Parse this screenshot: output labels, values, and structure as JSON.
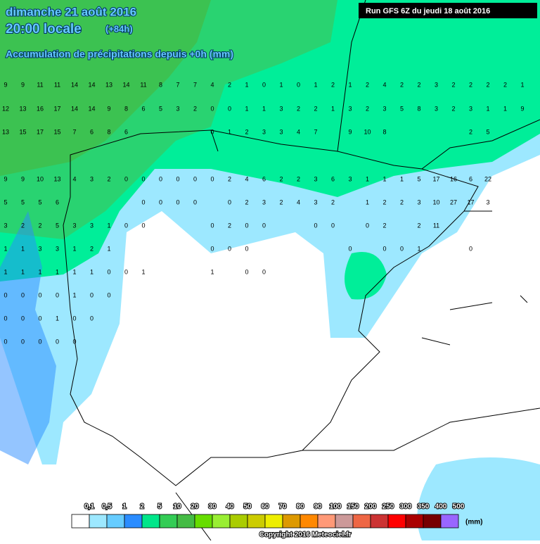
{
  "header": {
    "title": "dimanche 21 août 2016",
    "time": "20:00 locale",
    "horizon": "(+84h)",
    "subtitle": "Accumulation de précipitations depuis +0h (mm)",
    "run": "Run GFS 6Z du jeudi 18 août 2016"
  },
  "map_labels": {
    "rows": [
      [
        9,
        9,
        11,
        11,
        14,
        14,
        13,
        14,
        11,
        8,
        7,
        7,
        4,
        2,
        1,
        0,
        1,
        0,
        1,
        2,
        1,
        2,
        4,
        2,
        2,
        3,
        2,
        2,
        2,
        2,
        1
      ],
      [
        12,
        13,
        16,
        17,
        14,
        14,
        9,
        8,
        6,
        5,
        3,
        2,
        0,
        0,
        1,
        1,
        3,
        2,
        2,
        1,
        3,
        2,
        3,
        5,
        8,
        3,
        2,
        3,
        1,
        1,
        9
      ],
      [
        13,
        15,
        17,
        15,
        7,
        6,
        8,
        6,
        null,
        null,
        null,
        null,
        0,
        1,
        2,
        3,
        3,
        4,
        7,
        null,
        9,
        10,
        8,
        null,
        null,
        null,
        null,
        2,
        5
      ],
      [
        9,
        9,
        10,
        13,
        4,
        3,
        2,
        0,
        0,
        0,
        0,
        0,
        0,
        2,
        4,
        6,
        2,
        2,
        3,
        6,
        3,
        1,
        1,
        1,
        5,
        17,
        16,
        6,
        22
      ],
      [
        5,
        5,
        5,
        6,
        null,
        null,
        null,
        null,
        0,
        0,
        0,
        0,
        null,
        0,
        2,
        3,
        2,
        4,
        3,
        2,
        null,
        1,
        2,
        2,
        3,
        10,
        27,
        17,
        3
      ],
      [
        3,
        2,
        2,
        5,
        3,
        3,
        1,
        0,
        0,
        null,
        null,
        null,
        0,
        2,
        0,
        0,
        null,
        null,
        0,
        0,
        null,
        0,
        2,
        null,
        2,
        11
      ],
      [
        1,
        1,
        3,
        3,
        1,
        2,
        1,
        null,
        null,
        null,
        null,
        null,
        0,
        0,
        0,
        null,
        null,
        null,
        null,
        null,
        0,
        null,
        0,
        0,
        1,
        null,
        null,
        0
      ],
      [
        1,
        1,
        1,
        1,
        1,
        1,
        0,
        0,
        1,
        null,
        null,
        null,
        1,
        null,
        0,
        0
      ],
      [
        0,
        0,
        0,
        0,
        1,
        0,
        0
      ],
      [
        0,
        0,
        0,
        1,
        0,
        0
      ],
      [
        0,
        0,
        0,
        0,
        0
      ]
    ]
  },
  "legend": {
    "labels": [
      "0,1",
      "0,5",
      "1",
      "2",
      "5",
      "10",
      "20",
      "30",
      "40",
      "50",
      "60",
      "70",
      "80",
      "90",
      "100",
      "150",
      "200",
      "250",
      "300",
      "350",
      "400",
      "500"
    ],
    "colors": [
      "#ffffff",
      "#9de8ff",
      "#66ccff",
      "#2a8cff",
      "#00e68a",
      "#33cc55",
      "#44bb44",
      "#66dd00",
      "#99ee33",
      "#aacc00",
      "#cccc00",
      "#eeee00",
      "#dd9900",
      "#ff8800",
      "#ff9977",
      "#cc9999",
      "#ee6644",
      "#cc3333",
      "#ff0000",
      "#aa0000",
      "#770000",
      "#9966ff"
    ],
    "unit": "(mm)"
  },
  "copyright": "Copyright 2016 Meteociel.fr"
}
